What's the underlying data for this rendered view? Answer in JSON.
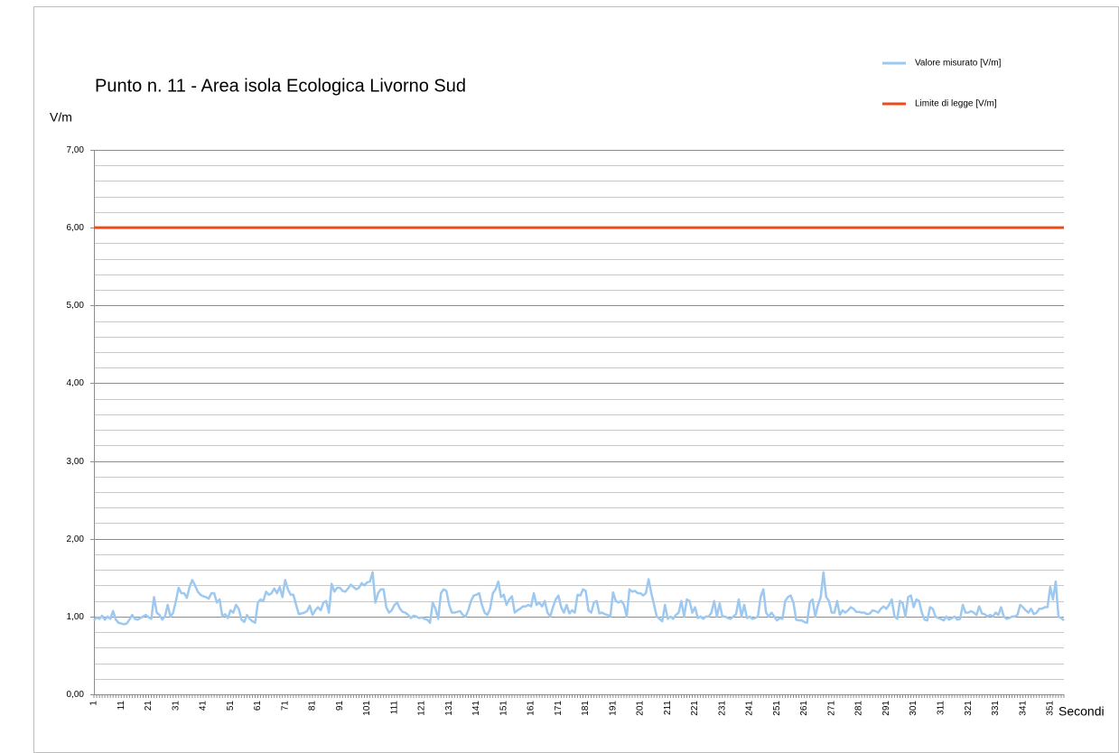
{
  "chart_data": {
    "type": "line",
    "title": "Punto n. 11 - Area isola Ecologica Livorno Sud",
    "y_label": "V/m",
    "x_label": "Secondi",
    "legend_position": "upper right",
    "grid": true,
    "ylim": [
      0,
      7
    ],
    "yticks": [
      {
        "value": 0,
        "label": "0,00"
      },
      {
        "value": 1,
        "label": "1,00"
      },
      {
        "value": 2,
        "label": "2,00"
      },
      {
        "value": 3,
        "label": "3,00"
      },
      {
        "value": 4,
        "label": "4,00"
      },
      {
        "value": 5,
        "label": "5,00"
      },
      {
        "value": 6,
        "label": "6,00"
      },
      {
        "value": 7,
        "label": "7,00"
      }
    ],
    "yminorticks": [
      0.2,
      0.4,
      0.6,
      0.8,
      1.2,
      1.4,
      1.6,
      1.8,
      2.2,
      2.4,
      2.6,
      2.8,
      3.2,
      3.4,
      3.6,
      3.8,
      4.2,
      4.4,
      4.6,
      4.8,
      5.2,
      5.4,
      5.6,
      5.8,
      6.2,
      6.4,
      6.6,
      6.8
    ],
    "categories": [
      "1",
      null,
      null,
      null,
      null,
      null,
      null,
      null,
      null,
      null,
      "11",
      null,
      null,
      null,
      null,
      null,
      null,
      null,
      null,
      null,
      "21",
      null,
      null,
      null,
      null,
      null,
      null,
      null,
      null,
      null,
      "31",
      null,
      null,
      null,
      null,
      null,
      null,
      null,
      null,
      null,
      "41",
      null,
      null,
      null,
      null,
      null,
      null,
      null,
      null,
      null,
      "51",
      null,
      null,
      null,
      null,
      null,
      null,
      null,
      null,
      null,
      "61",
      null,
      null,
      null,
      null,
      null,
      null,
      null,
      null,
      null,
      "71",
      null,
      null,
      null,
      null,
      null,
      null,
      null,
      null,
      null,
      "81",
      null,
      null,
      null,
      null,
      null,
      null,
      null,
      null,
      null,
      "91",
      null,
      null,
      null,
      null,
      null,
      null,
      null,
      null,
      null,
      "101",
      null,
      null,
      null,
      null,
      null,
      null,
      null,
      null,
      null,
      "111",
      null,
      null,
      null,
      null,
      null,
      null,
      null,
      null,
      null,
      "121",
      null,
      null,
      null,
      null,
      null,
      null,
      null,
      null,
      null,
      "131",
      null,
      null,
      null,
      null,
      null,
      null,
      null,
      null,
      null,
      "141",
      null,
      null,
      null,
      null,
      null,
      null,
      null,
      null,
      null,
      "151",
      null,
      null,
      null,
      null,
      null,
      null,
      null,
      null,
      null,
      "161",
      null,
      null,
      null,
      null,
      null,
      null,
      null,
      null,
      null,
      "171",
      null,
      null,
      null,
      null,
      null,
      null,
      null,
      null,
      null,
      "181",
      null,
      null,
      null,
      null,
      null,
      null,
      null,
      null,
      null,
      "191",
      null,
      null,
      null,
      null,
      null,
      null,
      null,
      null,
      null,
      "201",
      null,
      null,
      null,
      null,
      null,
      null,
      null,
      null,
      null,
      "211",
      null,
      null,
      null,
      null,
      null,
      null,
      null,
      null,
      null,
      "221",
      null,
      null,
      null,
      null,
      null,
      null,
      null,
      null,
      null,
      "231",
      null,
      null,
      null,
      null,
      null,
      null,
      null,
      null,
      null,
      "241",
      null,
      null,
      null,
      null,
      null,
      null,
      null,
      null,
      null,
      "251",
      null,
      null,
      null,
      null,
      null,
      null,
      null,
      null,
      null,
      "261",
      null,
      null,
      null,
      null,
      null,
      null,
      null,
      null,
      null,
      "271",
      null,
      null,
      null,
      null,
      null,
      null,
      null,
      null,
      null,
      "281",
      null,
      null,
      null,
      null,
      null,
      null,
      null,
      null,
      null,
      "291",
      null,
      null,
      null,
      null,
      null,
      null,
      null,
      null,
      null,
      "301",
      null,
      null,
      null,
      null,
      null,
      null,
      null,
      null,
      null,
      "311",
      null,
      null,
      null,
      null,
      null,
      null,
      null,
      null,
      null,
      "321",
      null,
      null,
      null,
      null,
      null,
      null,
      null,
      null,
      null,
      "331",
      null,
      null,
      null,
      null,
      null,
      null,
      null,
      null,
      null,
      "341",
      null,
      null,
      null,
      null,
      null,
      null,
      null,
      null,
      null,
      "351",
      null,
      null,
      null,
      null,
      null
    ],
    "series": [
      {
        "name": "Valore misurato [V/m]",
        "color": "#9dc8f0",
        "values": [
          0.95,
          0.99,
          0.97,
          1.01,
          0.96,
          1.0,
          0.97,
          1.07,
          0.96,
          0.92,
          0.91,
          0.9,
          0.91,
          0.96,
          1.02,
          0.97,
          0.96,
          0.98,
          1.0,
          1.02,
          0.99,
          0.97,
          1.25,
          1.05,
          1.02,
          0.96,
          1.0,
          1.15,
          1.0,
          1.05,
          1.2,
          1.37,
          1.3,
          1.3,
          1.24,
          1.38,
          1.47,
          1.4,
          1.32,
          1.28,
          1.26,
          1.25,
          1.23,
          1.3,
          1.3,
          1.18,
          1.22,
          1.0,
          1.03,
          0.98,
          1.08,
          1.05,
          1.15,
          1.1,
          0.96,
          0.93,
          1.02,
          0.97,
          0.94,
          0.92,
          1.18,
          1.22,
          1.2,
          1.32,
          1.28,
          1.3,
          1.36,
          1.3,
          1.38,
          1.25,
          1.47,
          1.35,
          1.28,
          1.28,
          1.15,
          1.03,
          1.04,
          1.05,
          1.07,
          1.14,
          1.02,
          1.08,
          1.12,
          1.08,
          1.18,
          1.2,
          1.05,
          1.42,
          1.32,
          1.37,
          1.37,
          1.33,
          1.32,
          1.36,
          1.41,
          1.38,
          1.35,
          1.37,
          1.43,
          1.4,
          1.44,
          1.45,
          1.57,
          1.18,
          1.3,
          1.35,
          1.35,
          1.12,
          1.05,
          1.08,
          1.15,
          1.18,
          1.1,
          1.06,
          1.05,
          1.02,
          0.98,
          1.01,
          1.0,
          0.98,
          0.99,
          0.97,
          0.96,
          0.92,
          1.18,
          1.1,
          0.97,
          1.3,
          1.35,
          1.33,
          1.15,
          1.05,
          1.05,
          1.06,
          1.07,
          1.02,
          1.0,
          1.08,
          1.2,
          1.27,
          1.28,
          1.3,
          1.15,
          1.05,
          1.02,
          1.1,
          1.3,
          1.35,
          1.45,
          1.25,
          1.28,
          1.15,
          1.22,
          1.26,
          1.05,
          1.08,
          1.1,
          1.13,
          1.13,
          1.15,
          1.13,
          1.3,
          1.15,
          1.18,
          1.13,
          1.2,
          1.05,
          1.0,
          1.12,
          1.22,
          1.27,
          1.12,
          1.05,
          1.15,
          1.04,
          1.08,
          1.05,
          1.28,
          1.27,
          1.35,
          1.33,
          1.08,
          1.05,
          1.18,
          1.2,
          1.04,
          1.05,
          1.03,
          1.02,
          1.0,
          1.31,
          1.2,
          1.18,
          1.2,
          1.15,
          1.0,
          1.35,
          1.32,
          1.33,
          1.3,
          1.3,
          1.27,
          1.3,
          1.48,
          1.3,
          1.15,
          1.0,
          0.97,
          0.94,
          1.15,
          0.97,
          1.0,
          0.97,
          1.02,
          1.05,
          1.2,
          1.0,
          1.22,
          1.2,
          1.05,
          1.12,
          0.98,
          1.0,
          0.97,
          1.0,
          1.0,
          1.05,
          1.2,
          1.0,
          1.17,
          1.0,
          1.0,
          0.98,
          0.97,
          1.0,
          1.03,
          1.22,
          1.0,
          1.15,
          0.98,
          1.0,
          0.97,
          0.98,
          1.0,
          1.25,
          1.35,
          1.05,
          1.0,
          1.05,
          1.0,
          0.95,
          0.98,
          0.97,
          1.2,
          1.25,
          1.27,
          1.18,
          0.96,
          0.95,
          0.95,
          0.93,
          0.92,
          1.18,
          1.22,
          1.0,
          1.15,
          1.25,
          1.57,
          1.25,
          1.2,
          1.05,
          1.05,
          1.2,
          1.02,
          1.08,
          1.05,
          1.08,
          1.12,
          1.1,
          1.06,
          1.06,
          1.05,
          1.05,
          1.03,
          1.04,
          1.08,
          1.07,
          1.05,
          1.1,
          1.13,
          1.1,
          1.15,
          1.22,
          1.0,
          0.97,
          1.2,
          1.17,
          1.0,
          1.25,
          1.27,
          1.12,
          1.22,
          1.2,
          1.05,
          0.96,
          0.95,
          1.12,
          1.1,
          1.0,
          0.98,
          0.97,
          0.95,
          1.0,
          0.96,
          0.98,
          1.0,
          0.96,
          0.97,
          1.15,
          1.05,
          1.05,
          1.07,
          1.05,
          1.02,
          1.13,
          1.04,
          1.03,
          1.0,
          1.02,
          1.0,
          1.05,
          1.02,
          1.12,
          1.0,
          0.97,
          0.98,
          1.0,
          1.0,
          1.02,
          1.15,
          1.12,
          1.08,
          1.05,
          1.1,
          1.03,
          1.05,
          1.1,
          1.1,
          1.12,
          1.12,
          1.38,
          1.22,
          1.45,
          1.0,
          0.98,
          0.95
        ]
      }
    ],
    "limit": {
      "name": "Limite di legge [V/m]",
      "color": "#ee4b1a",
      "value": 6
    }
  }
}
